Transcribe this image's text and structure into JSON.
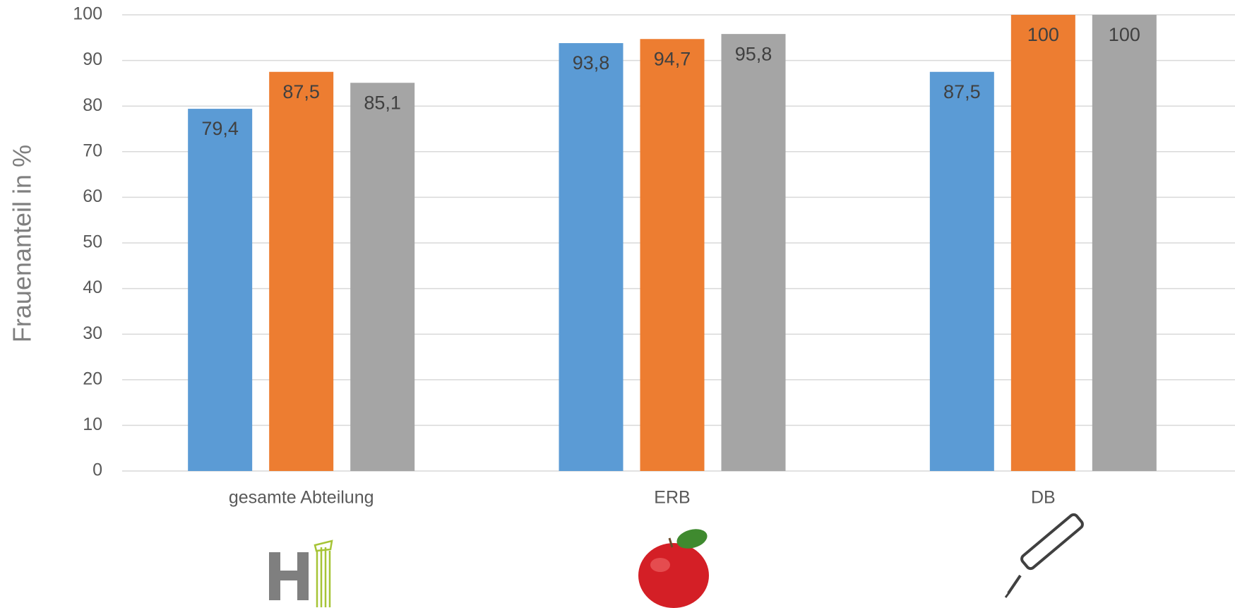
{
  "chart_data": {
    "type": "bar",
    "y_axis_label": "Frauenanteil in %",
    "categories": [
      "gesamte Abteilung",
      "ERB",
      "DB"
    ],
    "series": [
      {
        "color": "#5b9bd5",
        "values": [
          79.4,
          93.8,
          87.5
        ],
        "value_labels": [
          "79,4",
          "93,8",
          "87,5"
        ]
      },
      {
        "color": "#ed7d31",
        "values": [
          87.5,
          94.7,
          100
        ],
        "value_labels": [
          "87,5",
          "94,7",
          "100"
        ]
      },
      {
        "color": "#a5a5a5",
        "values": [
          85.1,
          95.8,
          100
        ],
        "value_labels": [
          "85,1",
          "95,8",
          "100"
        ]
      }
    ],
    "ylim": [
      0,
      100
    ],
    "yticks": [
      0,
      10,
      20,
      30,
      40,
      50,
      60,
      70,
      80,
      90,
      100
    ],
    "grid": true
  }
}
